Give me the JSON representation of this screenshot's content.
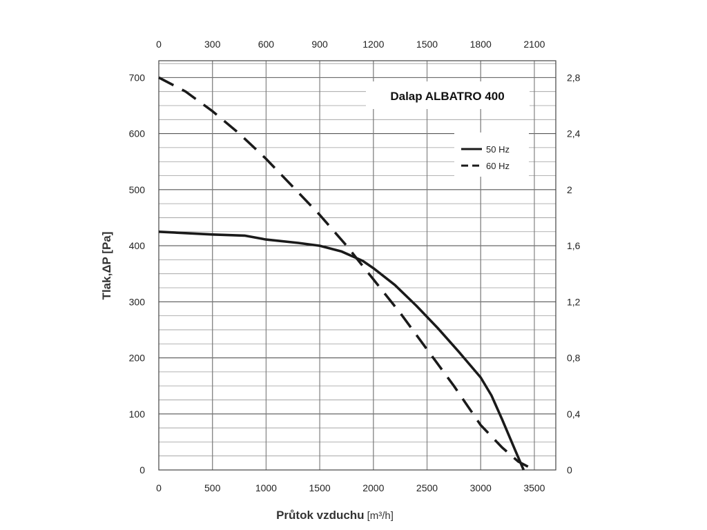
{
  "chart_data": {
    "type": "line",
    "title": "Dalap ALBATRO 400",
    "xlabel": "Průtok vzduchu",
    "xlabel_unit": "[m³/h]",
    "ylabel": "Tlak,ΔP [Pa]",
    "xlim": [
      0,
      3700
    ],
    "ylim": [
      0,
      730
    ],
    "x_ticks": [
      "0",
      "500",
      "1000",
      "1500",
      "2000",
      "2500",
      "3000",
      "3500"
    ],
    "y_ticks": [
      "0",
      "100",
      "200",
      "300",
      "400",
      "500",
      "600",
      "700"
    ],
    "top_axis": {
      "lim": [
        0,
        2220
      ],
      "ticks": [
        "0",
        "300",
        "600",
        "900",
        "1200",
        "1500",
        "1800",
        "2100"
      ]
    },
    "right_axis": {
      "lim": [
        0,
        2.92
      ],
      "ticks": [
        "0",
        "0,4",
        "0,8",
        "1,2",
        "1,6",
        "2",
        "2,4",
        "2,8"
      ]
    },
    "grid": true,
    "legend_position": "top-right",
    "series": [
      {
        "name": "50 Hz",
        "style": "solid",
        "x": [
          0,
          500,
          800,
          1000,
          1300,
          1500,
          1700,
          1900,
          2000,
          2200,
          2400,
          2600,
          2800,
          3000,
          3100,
          3200,
          3300,
          3400
        ],
        "y": [
          425,
          420,
          418,
          411,
          405,
          400,
          390,
          373,
          360,
          330,
          293,
          253,
          210,
          165,
          133,
          90,
          45,
          0
        ]
      },
      {
        "name": "60 Hz",
        "style": "dashed",
        "x": [
          0,
          250,
          500,
          750,
          1000,
          1250,
          1500,
          1750,
          2000,
          2250,
          2500,
          2750,
          3000,
          3200,
          3350,
          3500
        ],
        "y": [
          700,
          675,
          640,
          600,
          555,
          505,
          455,
          400,
          340,
          280,
          215,
          150,
          80,
          40,
          15,
          0
        ]
      }
    ]
  }
}
